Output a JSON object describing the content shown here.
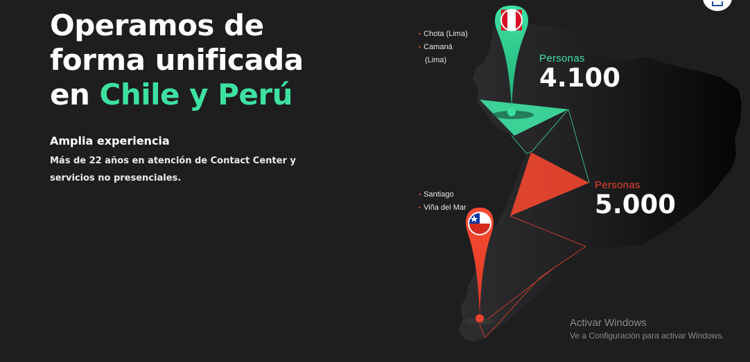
{
  "hero": {
    "title_line1": "Operamos de",
    "title_line2": "forma unificada",
    "title_line3_prefix": "en ",
    "title_line3_accent": "Chile y Perú",
    "subtitle": "Amplia experiencia",
    "description": "Más de 22 años en atención de Contact Center y servicios no presenciales."
  },
  "peru": {
    "cities": [
      "Chota (Lima)",
      "Camaná"
    ],
    "cities_suffix": "(Lima)",
    "stat_label": "Personas",
    "stat_value": "4.100",
    "flag_icon": "peru-flag-icon",
    "color": "#3ee0a1"
  },
  "chile": {
    "cities": [
      "Santiago",
      "Viña del Mar"
    ],
    "stat_label": "Personas",
    "stat_value": "5.000",
    "flag_icon": "chile-flag-icon",
    "color": "#e8442e"
  },
  "watermark": {
    "line1": "Activar Windows",
    "line2": "Ve a Configuración para activar Windows."
  },
  "colors": {
    "background": "#1e1e1f",
    "accent_green": "#3ee0a1",
    "accent_red": "#e8442e"
  }
}
